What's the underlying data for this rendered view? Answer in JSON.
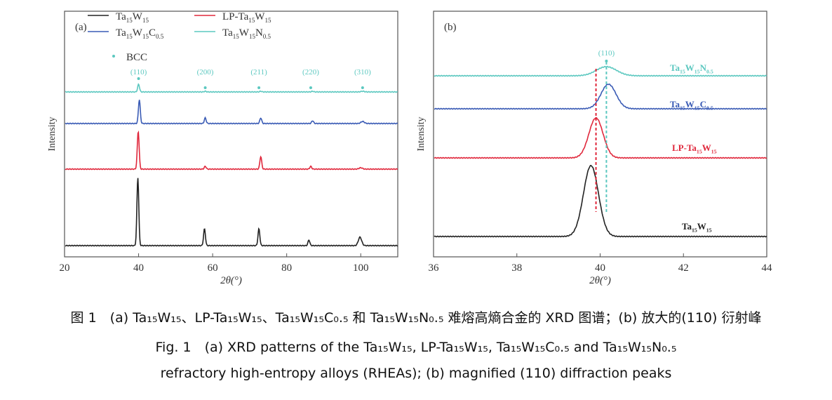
{
  "colors": {
    "black": "#222222",
    "red": "#e0283c",
    "blue": "#3a5bb5",
    "cyan": "#5cc8c0"
  },
  "chart_data": [
    {
      "type": "line",
      "panel_label": "(a)",
      "xlabel": "2θ(°)",
      "ylabel": "Intensity",
      "xlim": [
        20,
        110
      ],
      "xticks": [
        20,
        40,
        60,
        80,
        100
      ],
      "legend": [
        {
          "key": "black",
          "label": [
            {
              "t": "Ta"
            },
            {
              "t": "15",
              "sub": true
            },
            {
              "t": "W"
            },
            {
              "t": "15",
              "sub": true
            }
          ]
        },
        {
          "key": "red",
          "label": [
            {
              "t": "LP-Ta"
            },
            {
              "t": "15",
              "sub": true
            },
            {
              "t": "W"
            },
            {
              "t": "15",
              "sub": true
            }
          ]
        },
        {
          "key": "blue",
          "label": [
            {
              "t": "Ta"
            },
            {
              "t": "15",
              "sub": true
            },
            {
              "t": "W"
            },
            {
              "t": "15",
              "sub": true
            },
            {
              "t": "C"
            },
            {
              "t": "0.5",
              "sub": true
            }
          ]
        },
        {
          "key": "cyan",
          "label": [
            {
              "t": "Ta"
            },
            {
              "t": "15",
              "sub": true
            },
            {
              "t": "W"
            },
            {
              "t": "15",
              "sub": true
            },
            {
              "t": "N"
            },
            {
              "t": "0.5",
              "sub": true
            }
          ]
        }
      ],
      "marker_legend": "BCC",
      "peak_labels": [
        {
          "x": 40,
          "t": "(110)"
        },
        {
          "x": 58,
          "t": "(200)"
        },
        {
          "x": 72.5,
          "t": "(211)"
        },
        {
          "x": 86.5,
          "t": "(220)"
        },
        {
          "x": 100.5,
          "t": "(310)"
        }
      ],
      "series": [
        {
          "key": "cyan",
          "peaks": [
            [
              40,
              11
            ],
            [
              58,
              1
            ],
            [
              73,
              1
            ],
            [
              87,
              1
            ],
            [
              100.5,
              1
            ]
          ]
        },
        {
          "key": "blue",
          "peaks": [
            [
              40.2,
              34
            ],
            [
              58,
              8
            ],
            [
              73,
              8
            ],
            [
              87,
              4
            ],
            [
              100.5,
              3
            ]
          ]
        },
        {
          "key": "red",
          "peaks": [
            [
              39.9,
              54
            ],
            [
              58,
              4
            ],
            [
              73,
              18
            ],
            [
              86.5,
              4
            ],
            [
              100,
              2
            ]
          ]
        },
        {
          "key": "black",
          "peaks": [
            [
              39.8,
              97
            ],
            [
              57.8,
              24
            ],
            [
              72.5,
              24
            ],
            [
              86,
              8
            ],
            [
              99.8,
              12
            ]
          ]
        }
      ]
    },
    {
      "type": "line",
      "panel_label": "(b)",
      "xlabel": "2θ(°)",
      "ylabel": "Intensity",
      "xlim": [
        36,
        44
      ],
      "xticks": [
        36,
        38,
        40,
        42,
        44
      ],
      "peak_label": {
        "x": 40.15,
        "t": "(110)"
      },
      "dashed_lines": [
        {
          "key": "red",
          "x": 39.9
        },
        {
          "key": "cyan",
          "x": 40.15
        }
      ],
      "series": [
        {
          "key": "cyan",
          "peak": [
            40.15,
            13
          ],
          "label": [
            {
              "t": "Ta"
            },
            {
              "t": "15",
              "sub": true
            },
            {
              "t": "W"
            },
            {
              "t": "15",
              "sub": true
            },
            {
              "t": "N"
            },
            {
              "t": "0.5",
              "sub": true
            }
          ]
        },
        {
          "key": "blue",
          "peak": [
            40.2,
            35
          ],
          "label": [
            {
              "t": "Ta"
            },
            {
              "t": "15",
              "sub": true
            },
            {
              "t": "W"
            },
            {
              "t": "15",
              "sub": true
            },
            {
              "t": "C"
            },
            {
              "t": "0.5",
              "sub": true
            }
          ]
        },
        {
          "key": "red",
          "peak": [
            39.9,
            57
          ],
          "label": [
            {
              "t": "LP-Ta"
            },
            {
              "t": "15",
              "sub": true
            },
            {
              "t": "W"
            },
            {
              "t": "15",
              "sub": true
            }
          ]
        },
        {
          "key": "black",
          "peak": [
            39.78,
            101
          ],
          "label": [
            {
              "t": "Ta"
            },
            {
              "t": "15",
              "sub": true
            },
            {
              "t": "W"
            },
            {
              "t": "15",
              "sub": true
            }
          ]
        }
      ]
    }
  ],
  "caption": {
    "zh": "图 1　(a) Ta₁₅W₁₅、LP-Ta₁₅W₁₅、Ta₁₅W₁₅C₀.₅ 和 Ta₁₅W₁₅N₀.₅ 难熔高熵合金的 XRD 图谱；(b) 放大的(110) 衍射峰",
    "en1": "Fig. 1　(a) XRD patterns of the Ta₁₅W₁₅, LP-Ta₁₅W₁₅, Ta₁₅W₁₅C₀.₅ and Ta₁₅W₁₅N₀.₅",
    "en2": "refractory high-entropy alloys (RHEAs); (b) magnified (110) diffraction peaks"
  }
}
